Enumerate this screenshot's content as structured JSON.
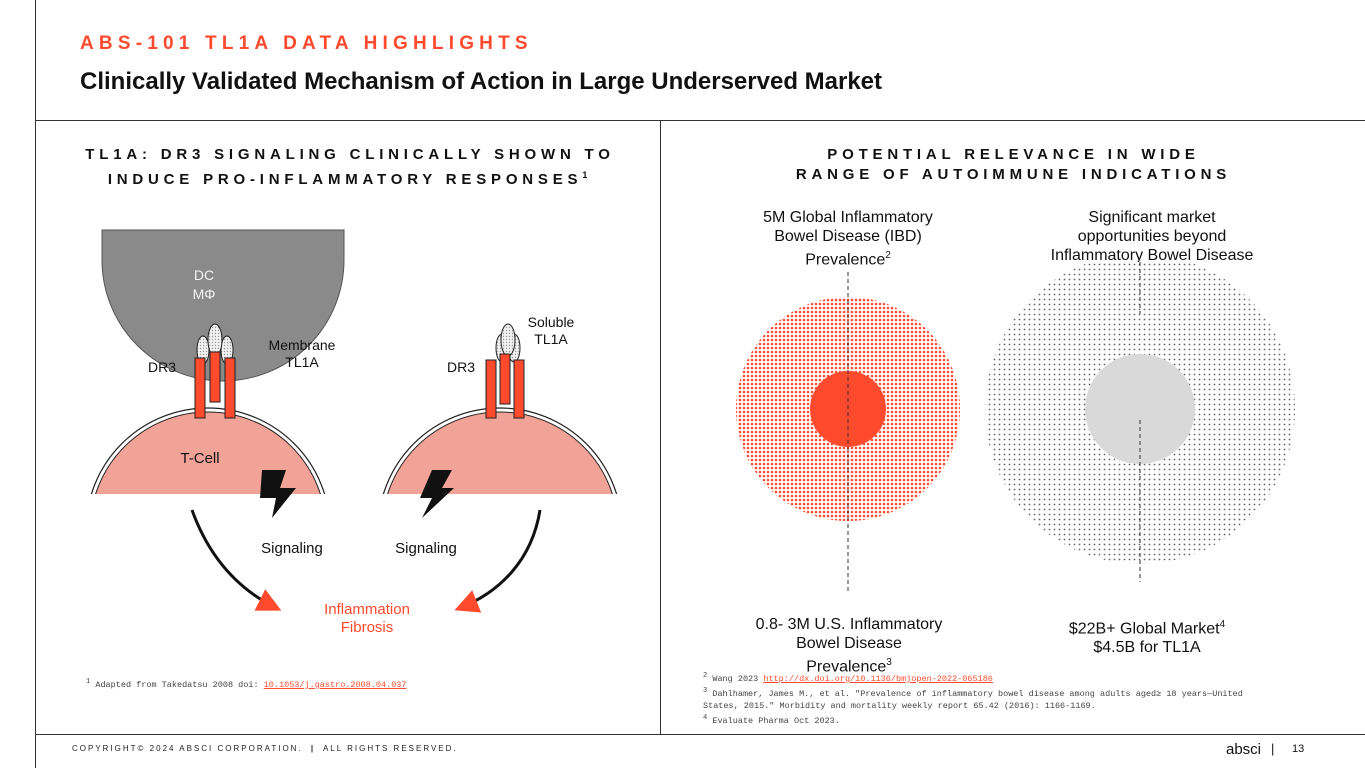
{
  "header": {
    "eyebrow": "ABS-101 TL1A DATA HIGHLIGHTS",
    "title": "Clinically Validated Mechanism of Action in Large Underserved Market"
  },
  "left_panel": {
    "title_line1": "TL1A: DR3 SIGNALING CLINICALLY SHOWN TO",
    "title_line2": "INDUCE PRO-INFLAMMATORY RESPONSES",
    "title_sup": "1",
    "dc_label_1": "DC",
    "dc_label_2": "MΦ",
    "membrane_label_1": "Membrane",
    "membrane_label_2": "TL1A",
    "dr3_left": "DR3",
    "dr3_right": "DR3",
    "soluble_label_1": "Soluble",
    "soluble_label_2": "TL1A",
    "tcell_label": "T-Cell",
    "signaling_left": "Signaling",
    "signaling_right": "Signaling",
    "outcome_1": "Inflammation",
    "outcome_2": "Fibrosis",
    "footnote_sup": "1",
    "footnote_text": " Adapted from Takedatsu 2008 doi: ",
    "footnote_link": "10.1053/j.gastro.2008.04.037"
  },
  "right_panel": {
    "title_line1": "POTENTIAL RELEVANCE IN WIDE",
    "title_line2": "RANGE OF AUTOIMMUNE INDICATIONS",
    "ibd_global_1": "5M Global Inflammatory",
    "ibd_global_2": "Bowel Disease (IBD)",
    "ibd_global_3": "Prevalence",
    "ibd_global_sup": "2",
    "market_top_1": "Significant market",
    "market_top_2": "opportunities beyond",
    "market_top_3": "Inflammatory Bowel Disease",
    "us_ibd_1": "0.8- 3M U.S. Inflammatory",
    "us_ibd_2": "Bowel Disease",
    "us_ibd_3": "Prevalence",
    "us_ibd_sup": "3",
    "market_1": "$22B+ Global Market",
    "market_sup": "4",
    "market_2": "$4.5B for TL1A",
    "fn2_sup": "2",
    "fn2_text": " Wang 2023 ",
    "fn2_link": "http://dx.doi.org/10.1136/bmjopen-2022-065186",
    "fn3_sup": "3",
    "fn3_line1": " Dahlhamer, James M., et al. \"Prevalence of inflammatory bowel disease among adults aged≥ 18 years—United",
    "fn3_line2": "States, 2015.\" Morbidity and mortality weekly report 65.42 (2016): 1166-1169.",
    "fn4_sup": "4",
    "fn4_text": " Evaluate Pharma Oct 2023."
  },
  "footer": {
    "copyright": "COPYRIGHT© 2024 ABSCI CORPORATION.",
    "separator": "|",
    "rights": "ALL RIGHTS RESERVED.",
    "logo": "absci",
    "page_sep": "|",
    "page_number": "13"
  },
  "colors": {
    "accent": "#ff4a2e",
    "tcell": "#f0a396",
    "dc": "#8a8a8a",
    "receptor": "#ff4a2e",
    "market_core": "#d9d9d9"
  }
}
